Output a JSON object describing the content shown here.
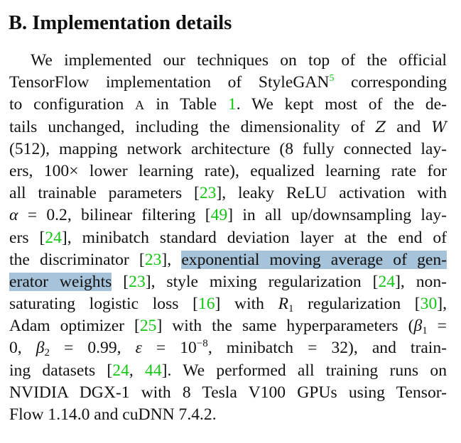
{
  "section": {
    "heading": "B. Implementation details"
  },
  "paragraph": {
    "l1_text": "We implemented our techniques on top of the official",
    "l2_a": "TensorFlow implementation of StyleGAN",
    "l2_footnote": "5",
    "l2_b": " corresponding",
    "l3_a": "to configuration ",
    "l3_config": "A",
    "l3_b": " in Table ",
    "l3_table": "1",
    "l3_c": ".  We kept most of the de-",
    "l4_a": "tails unchanged, including the dimensionality of ",
    "l4_z": "Z",
    "l4_b": " and ",
    "l4_w": "W",
    "l5_text": "(512), mapping network architecture (8 fully connected lay-",
    "l6_text": "ers, 100× lower learning rate), equalized learning rate for",
    "l7_a": "all trainable parameters [",
    "l7_c1": "23",
    "l7_b": "], leaky ReLU activation with",
    "l8_alpha": "α",
    "l8_a": " = 0.2, bilinear filtering [",
    "l8_c1": "49",
    "l8_b": "] in all up/downsampling lay-",
    "l9_a": "ers [",
    "l9_c1": "24",
    "l9_b": "], minibatch standard deviation layer at the end of",
    "l10_a": "the discriminator [",
    "l10_c1": "23",
    "l10_b": "], ",
    "l10_hl": "exponential moving average of gen-",
    "l11_hl": "erator weights",
    "l11_a": " [",
    "l11_c1": "23",
    "l11_b": "], style mixing regularization [",
    "l11_c2": "24",
    "l11_c": "], non-",
    "l12_a": "saturating logistic loss [",
    "l12_c1": "16",
    "l12_b": "] with ",
    "l12_r": "R",
    "l12_rsub": "1",
    "l12_c": " regularization [",
    "l12_c2": "30",
    "l12_d": "],",
    "l13_a": "Adam optimizer [",
    "l13_c1": "25",
    "l13_b": "] with the same hyperparameters (",
    "l13_beta": "β",
    "l13_betasub": "1",
    "l13_eq": " =",
    "l14_a": "0, ",
    "l14_beta": "β",
    "l14_betasub": "2",
    "l14_b": " = 0.99, ",
    "l14_eps": "ε",
    "l14_c": " = 10",
    "l14_exp": "−8",
    "l14_d": ", minibatch = 32), and train-",
    "l15_a": "ing datasets [",
    "l15_c1": "24",
    "l15_b": ", ",
    "l15_c2": "44",
    "l15_c": "].  We performed all training runs on",
    "l16_text": "NVIDIA DGX-1 with 8 Tesla V100 GPUs using Tensor-",
    "l17_text": "Flow 1.14.0 and cuDNN 7.4.2."
  },
  "colors": {
    "citation": "#11c711",
    "highlight": "#a6c3d9",
    "text": "#111111"
  }
}
